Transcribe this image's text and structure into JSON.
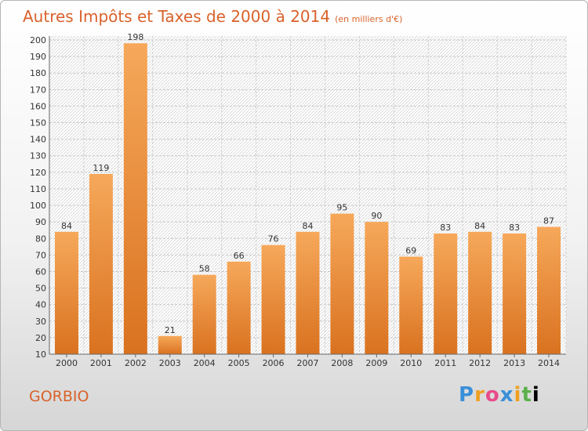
{
  "header": {
    "title": "Autres Impôts et Taxes de 2000 à 2014",
    "subtitle": "(en milliers d'€)"
  },
  "footer": {
    "place": "GORBIO",
    "logo": "Proxiti",
    "logo_letters": [
      "P",
      "r",
      "o",
      "x",
      "i",
      "t",
      "i"
    ]
  },
  "colors": {
    "bar_top": "#f6a85a",
    "bar_bottom": "#d97220",
    "title": "#d9622b"
  },
  "chart_data": {
    "type": "bar",
    "title": "Autres Impôts et Taxes de 2000 à 2014",
    "xlabel": "",
    "ylabel": "",
    "categories": [
      "2000",
      "2001",
      "2002",
      "2003",
      "2004",
      "2005",
      "2006",
      "2007",
      "2008",
      "2009",
      "2010",
      "2011",
      "2012",
      "2013",
      "2014"
    ],
    "values": [
      84,
      119,
      198,
      21,
      58,
      66,
      76,
      84,
      95,
      90,
      69,
      83,
      84,
      83,
      87
    ],
    "ylim": [
      10,
      200
    ],
    "yticks": [
      10,
      20,
      30,
      40,
      50,
      60,
      70,
      80,
      90,
      100,
      110,
      120,
      130,
      140,
      150,
      160,
      170,
      180,
      190,
      200
    ],
    "grid": true
  }
}
